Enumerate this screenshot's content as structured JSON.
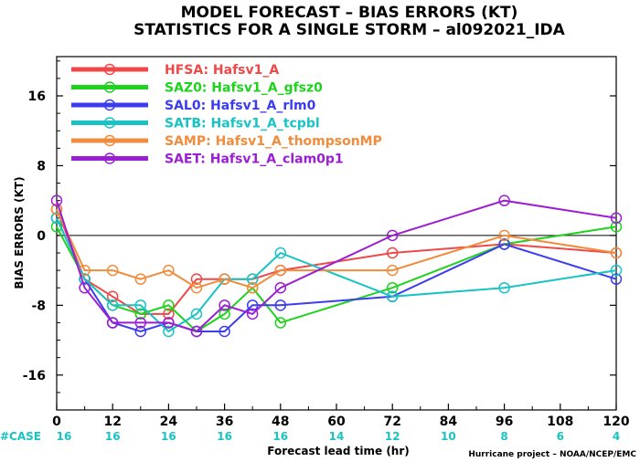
{
  "chart_data": {
    "type": "line",
    "title": "MODEL FORECAST – BIAS ERRORS (KT)",
    "subtitle": "STATISTICS FOR A SINGLE STORM – al092021_IDA",
    "xlabel": "Forecast lead time (hr)",
    "ylabel": "BIAS ERRORS (KT)",
    "xlim": [
      0,
      120
    ],
    "ylim": [
      -20,
      20.5
    ],
    "x_ticks": [
      0,
      12,
      24,
      36,
      48,
      60,
      72,
      84,
      96,
      108,
      120
    ],
    "y_ticks": [
      -16,
      -8,
      0,
      8,
      16
    ],
    "zero_line": true,
    "legend_position": "top-left",
    "series": [
      {
        "name": "HFSA",
        "label": "HFSA:  Hafsv1_A",
        "color": "#f04848",
        "x": [
          0,
          6,
          12,
          18,
          24,
          30,
          36,
          42,
          48,
          72,
          96,
          120
        ],
        "y": [
          3,
          -5,
          -7,
          -9,
          -9,
          -5,
          -5,
          -5,
          -4,
          -2,
          -1,
          -2
        ]
      },
      {
        "name": "SAZ0",
        "label": "SAZ0:  Hafsv1_A_gfsz0",
        "color": "#1ed21e",
        "x": [
          0,
          6,
          12,
          18,
          24,
          30,
          36,
          42,
          48,
          72,
          96,
          120
        ],
        "y": [
          1,
          -5,
          -8,
          -9,
          -8,
          -11,
          -9,
          -6,
          -10,
          -6,
          -1,
          1
        ]
      },
      {
        "name": "SAL0",
        "label": "SAL0:  Hafsv1_A_rlm0",
        "color": "#3c3cf0",
        "x": [
          0,
          6,
          12,
          18,
          24,
          30,
          36,
          42,
          48,
          72,
          96,
          120
        ],
        "y": [
          2,
          -5,
          -10,
          -11,
          -10,
          -11,
          -11,
          -8,
          -8,
          -7,
          -1,
          -5
        ]
      },
      {
        "name": "SATB",
        "label": "SATB:  Hafsv1_A_tcpbl",
        "color": "#19c3c3",
        "x": [
          0,
          6,
          12,
          18,
          24,
          30,
          36,
          42,
          48,
          72,
          96,
          120
        ],
        "y": [
          2,
          -5,
          -8,
          -8,
          -11,
          -9,
          -5,
          -5,
          -2,
          -7,
          -6,
          -4
        ]
      },
      {
        "name": "SAMP",
        "label": "SAMP:  Hafsv1_A_thompsonMP",
        "color": "#f08c3c",
        "x": [
          0,
          6,
          12,
          18,
          24,
          30,
          36,
          42,
          48,
          72,
          96,
          120
        ],
        "y": [
          3,
          -4,
          -4,
          -5,
          -4,
          -6,
          -5,
          -6,
          -4,
          -4,
          0,
          -2
        ]
      },
      {
        "name": "SAET",
        "label": "SAET:  Hafsv1_A_clam0p1",
        "color": "#9b1ed2",
        "x": [
          0,
          6,
          12,
          18,
          24,
          30,
          36,
          42,
          48,
          72,
          96,
          120
        ],
        "y": [
          4,
          -6,
          -10,
          -10,
          -10,
          -11,
          -8,
          -9,
          -6,
          0,
          4,
          2
        ]
      }
    ],
    "cases": {
      "label": "#CASE",
      "x": [
        0,
        12,
        24,
        36,
        48,
        60,
        72,
        84,
        96,
        108,
        120
      ],
      "values": [
        "16",
        "16",
        "16",
        "16",
        "16",
        "14",
        "12",
        "10",
        "8",
        "6",
        "4"
      ]
    },
    "credit": "Hurricane project – NOAA/NCEP/EMC"
  }
}
